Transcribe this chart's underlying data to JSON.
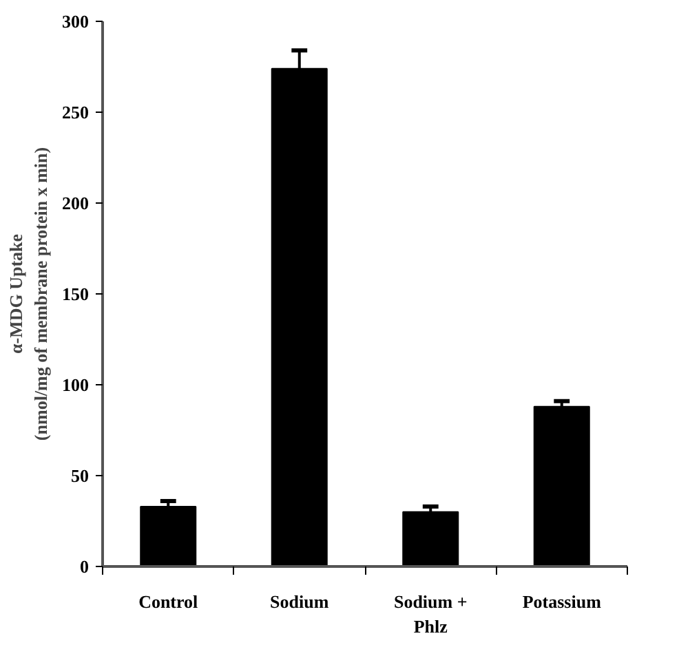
{
  "chart_data": {
    "type": "bar",
    "ylabel": "α-MDG Uptake\n(nmol/mg of membrane protein x min)",
    "categories": [
      "Control",
      "Sodium",
      "Sodium +\nPhlz",
      "Potassium"
    ],
    "values": [
      33,
      274,
      30,
      88
    ],
    "errors": [
      [
        33,
        36
      ],
      [
        274,
        284
      ],
      [
        30,
        33
      ],
      [
        88,
        91
      ]
    ],
    "color": "#000000",
    "ylim": [
      0,
      300
    ],
    "yticks": [
      0,
      50,
      100,
      150,
      200,
      250,
      300
    ],
    "grid": false
  }
}
